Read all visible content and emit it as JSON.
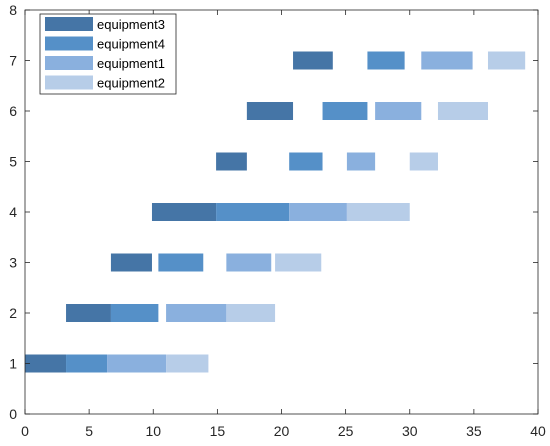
{
  "chart_data": {
    "type": "bar",
    "orientation": "horizontal",
    "xlim": [
      0,
      40
    ],
    "ylim": [
      0,
      8
    ],
    "xticks": [
      "0",
      "5",
      "10",
      "15",
      "20",
      "25",
      "30",
      "35",
      "40"
    ],
    "yticks": [
      "0",
      "1",
      "2",
      "3",
      "4",
      "5",
      "6",
      "7",
      "8"
    ],
    "grid": false,
    "legend_position": "top-left",
    "series": [
      {
        "name": "equipment3",
        "color": "#4575a6",
        "segments": [
          {
            "y": 1,
            "start": 0,
            "end": 3.2
          },
          {
            "y": 2,
            "start": 3.2,
            "end": 6.7
          },
          {
            "y": 3,
            "start": 6.7,
            "end": 9.9
          },
          {
            "y": 4,
            "start": 9.9,
            "end": 14.9
          },
          {
            "y": 5,
            "start": 14.9,
            "end": 17.3
          },
          {
            "y": 6,
            "start": 17.3,
            "end": 20.9
          },
          {
            "y": 7,
            "start": 20.9,
            "end": 24.0
          }
        ]
      },
      {
        "name": "equipment4",
        "color": "#5590c8",
        "segments": [
          {
            "y": 1,
            "start": 3.2,
            "end": 6.4
          },
          {
            "y": 2,
            "start": 6.7,
            "end": 10.4
          },
          {
            "y": 3,
            "start": 10.4,
            "end": 13.9
          },
          {
            "y": 4,
            "start": 14.9,
            "end": 20.6
          },
          {
            "y": 5,
            "start": 20.6,
            "end": 23.2
          },
          {
            "y": 6,
            "start": 23.2,
            "end": 26.7
          },
          {
            "y": 7,
            "start": 26.7,
            "end": 29.6
          }
        ]
      },
      {
        "name": "equipment1",
        "color": "#8ab0de",
        "segments": [
          {
            "y": 1,
            "start": 6.4,
            "end": 11.0
          },
          {
            "y": 2,
            "start": 11.0,
            "end": 15.7
          },
          {
            "y": 3,
            "start": 15.7,
            "end": 19.2
          },
          {
            "y": 4,
            "start": 20.6,
            "end": 25.1
          },
          {
            "y": 5,
            "start": 25.1,
            "end": 27.3
          },
          {
            "y": 6,
            "start": 27.3,
            "end": 30.9
          },
          {
            "y": 7,
            "start": 30.9,
            "end": 34.9
          }
        ]
      },
      {
        "name": "equipment2",
        "color": "#b7cde8",
        "segments": [
          {
            "y": 1,
            "start": 11.0,
            "end": 14.3
          },
          {
            "y": 2,
            "start": 15.7,
            "end": 19.5
          },
          {
            "y": 3,
            "start": 19.5,
            "end": 23.1
          },
          {
            "y": 4,
            "start": 25.1,
            "end": 30.0
          },
          {
            "y": 5,
            "start": 30.0,
            "end": 32.2
          },
          {
            "y": 6,
            "start": 32.2,
            "end": 36.1
          },
          {
            "y": 7,
            "start": 36.1,
            "end": 39.0
          }
        ]
      }
    ]
  }
}
